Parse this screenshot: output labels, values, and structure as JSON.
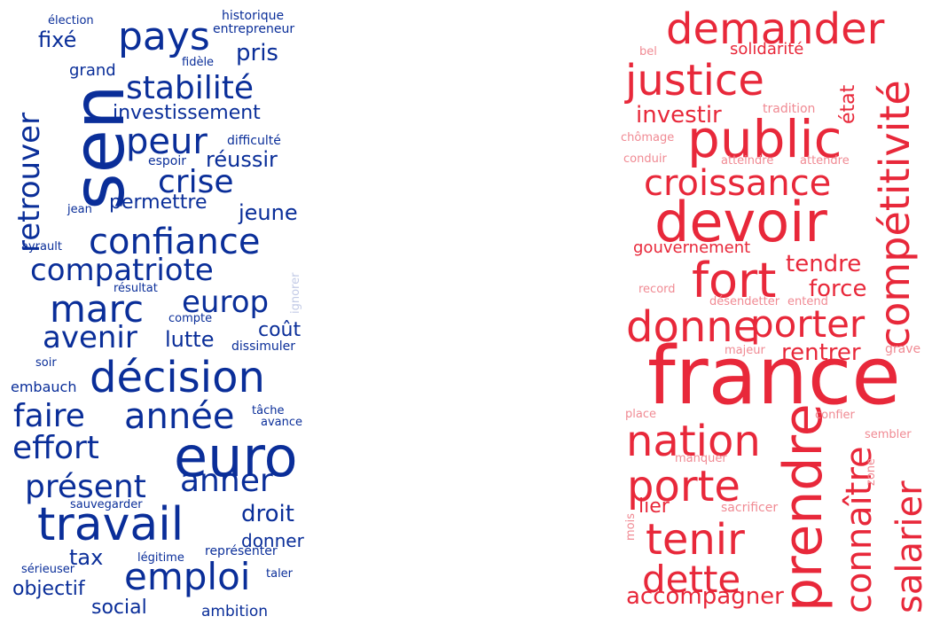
{
  "colors": {
    "left": "#0a2e99",
    "left_light": "#9aa8d6",
    "left_lighter": "#c3cbe6",
    "right": "#e8283a",
    "right_light": "#f08a93",
    "right_lighter": "#f5b2b8"
  },
  "left_cloud": {
    "words": [
      "sen",
      "pays",
      "stabilité",
      "peur",
      "investissement",
      "crise",
      "retrouver",
      "confiance",
      "compatriote",
      "marc",
      "europ",
      "avenir",
      "lutte",
      "coût",
      "décision",
      "faire",
      "année",
      "effort",
      "euro",
      "présent",
      "anner",
      "travail",
      "emploi",
      "droit",
      "tax",
      "objectif",
      "social",
      "donner",
      "ambition",
      "élection",
      "historique",
      "entrepreneur",
      "fixé",
      "grand",
      "fidèle",
      "pris",
      "difficulté",
      "espoir",
      "réussir",
      "permettre",
      "jeune",
      "jean",
      "ayrault",
      "résultat",
      "ignorer",
      "compte",
      "dissimuler",
      "soir",
      "embauch",
      "tâche",
      "avance",
      "sauvegarder",
      "légitime",
      "représenter",
      "sérieuser",
      "taler"
    ]
  },
  "right_cloud": {
    "words": [
      "demander",
      "justice",
      "compétitivité",
      "public",
      "état",
      "investir",
      "croissance",
      "devoir",
      "fort",
      "tendre",
      "force",
      "donne",
      "porter",
      "rentrer",
      "france",
      "nation",
      "prendre",
      "porte",
      "connaître",
      "salarier",
      "tenir",
      "dette",
      "accompagner",
      "bel",
      "solidarité",
      "tradition",
      "chômage",
      "conduir",
      "atteindre",
      "attendre",
      "gouvernement",
      "record",
      "désendetter",
      "entend",
      "majeur",
      "grave",
      "place",
      "confier",
      "sembler",
      "manquer",
      "zone",
      "lier",
      "sacrificer",
      "mois"
    ]
  }
}
